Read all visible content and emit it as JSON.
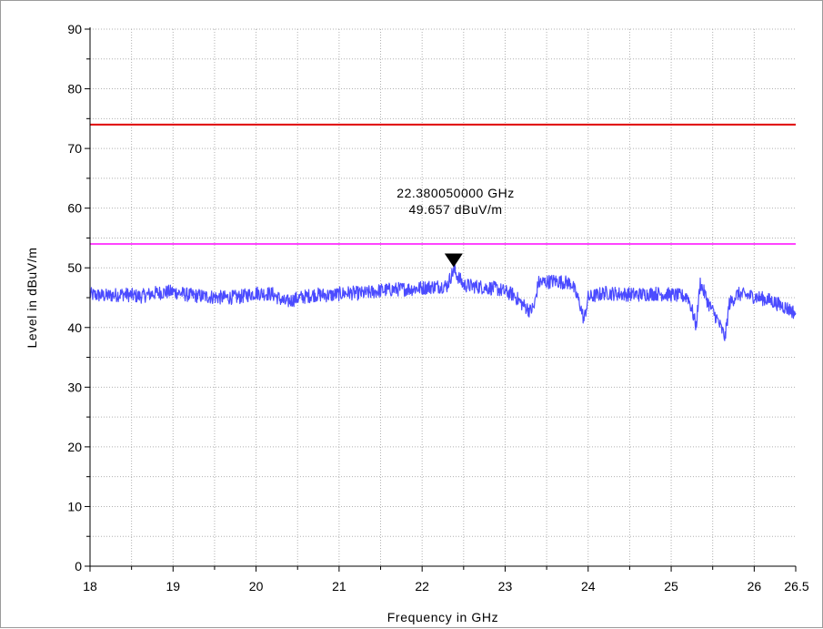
{
  "chart_data": {
    "type": "line",
    "title": "",
    "xlabel": "Frequency in GHz",
    "ylabel": "Level in dBuV/m",
    "xlim": [
      18,
      26.5
    ],
    "ylim": [
      0,
      90
    ],
    "x_ticks": [
      18,
      19,
      20,
      21,
      22,
      23,
      24,
      25,
      26,
      26.5
    ],
    "x_tick_labels": [
      "18",
      "19",
      "20",
      "21",
      "22",
      "23",
      "24",
      "25",
      "26",
      "26.5"
    ],
    "y_ticks": [
      0,
      10,
      20,
      30,
      40,
      50,
      60,
      70,
      80,
      90
    ],
    "y_tick_labels": [
      "0",
      "10",
      "20",
      "30",
      "40",
      "50",
      "60",
      "70",
      "80",
      "90"
    ],
    "grid": true,
    "limit_lines": [
      {
        "y": 74,
        "color": "#e00000"
      },
      {
        "y": 54,
        "color": "#ff44ff"
      }
    ],
    "series": [
      {
        "color": "#4b4bff",
        "x": [
          18.0,
          18.2,
          18.4,
          18.6,
          18.8,
          19.0,
          19.2,
          19.4,
          19.6,
          19.8,
          20.0,
          20.2,
          20.35,
          20.5,
          20.7,
          20.9,
          21.1,
          21.3,
          21.5,
          21.7,
          21.9,
          22.1,
          22.3,
          22.38,
          22.5,
          22.7,
          22.9,
          23.1,
          23.2,
          23.3,
          23.35,
          23.4,
          23.6,
          23.8,
          23.9,
          23.95,
          24.0,
          24.2,
          24.4,
          24.6,
          24.8,
          25.0,
          25.1,
          25.2,
          25.25,
          25.3,
          25.35,
          25.45,
          25.55,
          25.65,
          25.7,
          25.8,
          26.0,
          26.2,
          26.4,
          26.5
        ],
        "y": [
          45.5,
          45.3,
          45.6,
          45.2,
          45.8,
          46.0,
          45.4,
          45.2,
          45.0,
          45.1,
          45.8,
          45.6,
          44.2,
          44.9,
          45.5,
          45.4,
          45.8,
          45.7,
          46.2,
          46.4,
          46.5,
          46.8,
          47.0,
          49.657,
          47.1,
          46.8,
          46.5,
          45.5,
          44.0,
          42.8,
          43.5,
          47.5,
          47.8,
          47.4,
          44.0,
          41.2,
          45.0,
          45.8,
          45.6,
          45.5,
          45.7,
          45.5,
          45.3,
          45.2,
          43.0,
          40.2,
          47.5,
          44.0,
          41.5,
          38.3,
          44.0,
          45.6,
          45.2,
          44.5,
          43.2,
          42.4
        ]
      }
    ],
    "marker": {
      "x": 22.38,
      "y": 49.657,
      "label_freq": "22.380050000 GHz",
      "label_level": "49.657 dBuV/m"
    }
  }
}
